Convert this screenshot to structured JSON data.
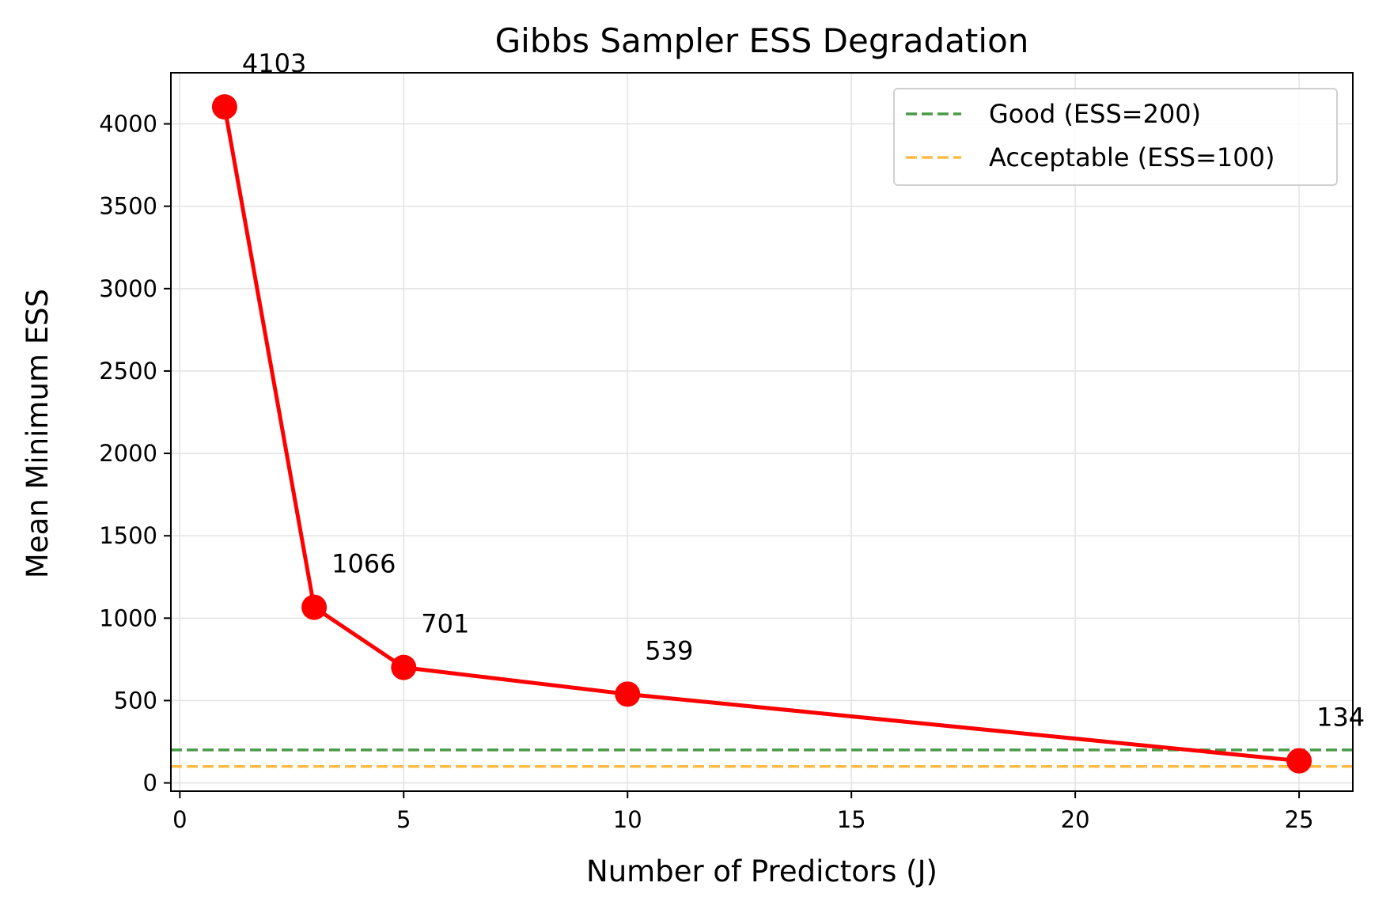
{
  "chart_data": {
    "type": "line",
    "title": "Gibbs Sampler ESS Degradation",
    "xlabel": "Number of Predictors (J)",
    "ylabel": "Mean Minimum ESS",
    "xlim": [
      -0.2,
      26.2
    ],
    "ylim": [
      -50,
      4310
    ],
    "x_ticks": [
      0,
      5,
      10,
      15,
      20,
      25
    ],
    "y_ticks": [
      0,
      500,
      1000,
      1500,
      2000,
      2500,
      3000,
      3500,
      4000
    ],
    "grid": true,
    "series": [
      {
        "name": "Mean Minimum ESS",
        "color": "#ff0000",
        "marker": "circle",
        "x": [
          1,
          3,
          5,
          10,
          25
        ],
        "values": [
          4103,
          1066,
          701,
          539,
          134
        ],
        "labels": [
          "4103",
          "1066",
          "701",
          "539",
          "134"
        ]
      }
    ],
    "reference_lines": [
      {
        "label": "Good (ESS=200)",
        "y": 200,
        "color": "#4a9a47",
        "style": "dashed"
      },
      {
        "label": "Acceptable (ESS=100)",
        "y": 100,
        "color": "#ffbb44",
        "style": "dashed"
      }
    ],
    "legend": {
      "position": "top-right"
    }
  }
}
